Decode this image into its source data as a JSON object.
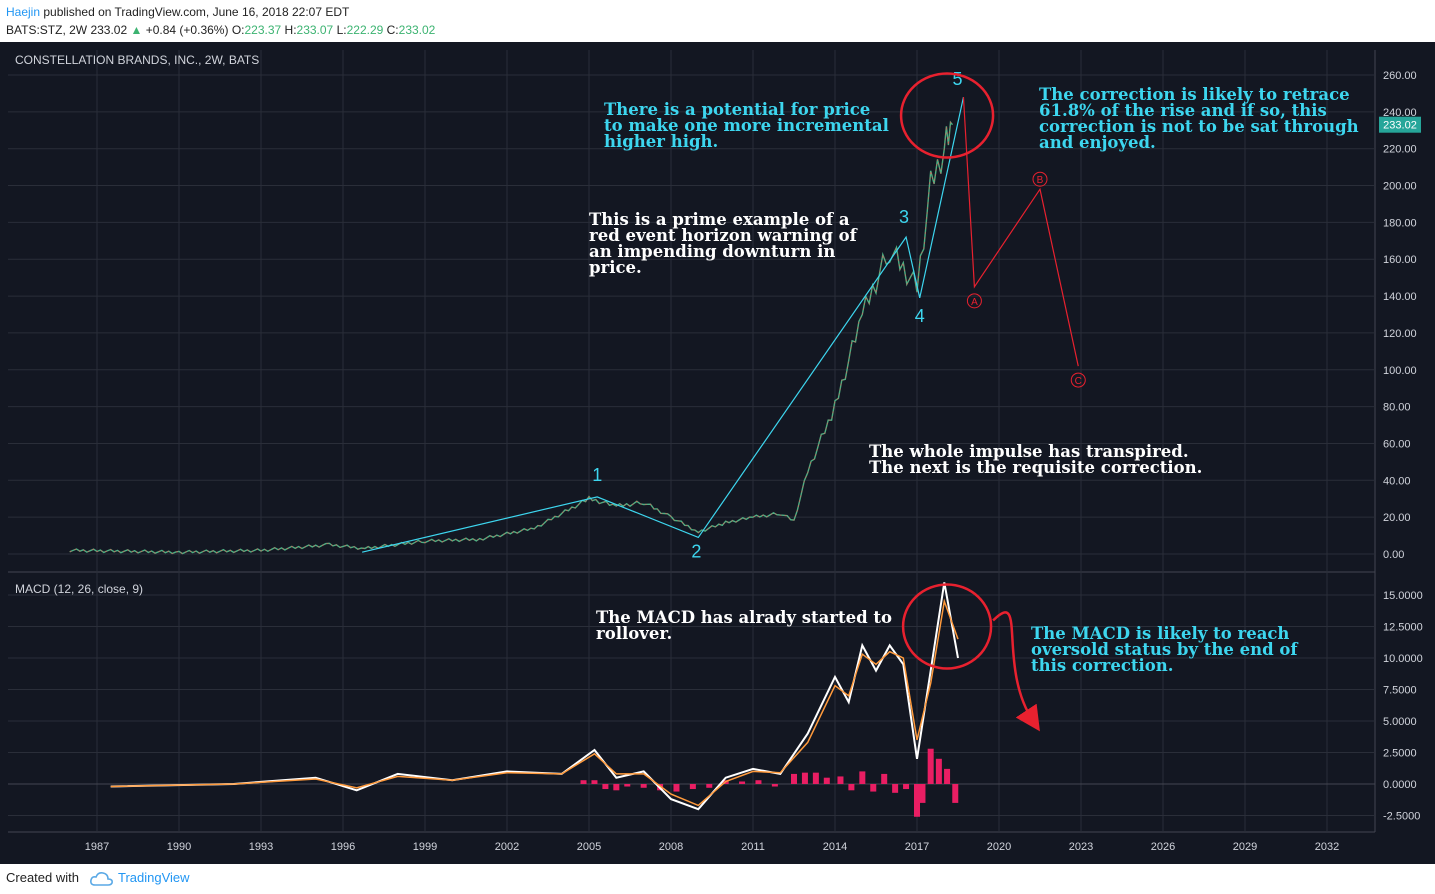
{
  "header": {
    "author": "Haejin",
    "published": " published on TradingView.com, June 16, 2018 22:07 EDT",
    "symbol_line": "BATS:STZ, 2W  233.02",
    "change": "+0.84 (+0.36%)",
    "o_label": "O:",
    "o_value": "223.37",
    "h_label": "H:",
    "h_value": "233.07",
    "l_label": "L:",
    "l_value": "222.29",
    "c_label": "C:",
    "c_value": "233.02"
  },
  "chart_data": [
    {
      "type": "line",
      "title": "CONSTELLATION BRANDS, INC., 2W, BATS",
      "last_price": "233.02",
      "ylim": [
        -10,
        270
      ],
      "y_ticks": [
        "260.00",
        "240.00",
        "220.00",
        "200.00",
        "180.00",
        "160.00",
        "140.00",
        "120.00",
        "100.00",
        "80.00",
        "60.00",
        "40.00",
        "20.00",
        "0.00"
      ],
      "x_ticks": [
        "1987",
        "1990",
        "1993",
        "1996",
        "1999",
        "2002",
        "2005",
        "2008",
        "2011",
        "2014",
        "2017",
        "2020",
        "2023",
        "2026",
        "2029",
        "2032"
      ],
      "price_path": [
        [
          1986,
          2
        ],
        [
          1990,
          1
        ],
        [
          1993,
          2
        ],
        [
          1995.5,
          5
        ],
        [
          1996.8,
          3
        ],
        [
          1999,
          7
        ],
        [
          2001,
          8
        ],
        [
          2003,
          14
        ],
        [
          2005,
          30
        ],
        [
          2006,
          26
        ],
        [
          2007,
          28
        ],
        [
          2008,
          20
        ],
        [
          2009,
          12
        ],
        [
          2010,
          17
        ],
        [
          2011,
          20
        ],
        [
          2012,
          22
        ],
        [
          2012.5,
          18
        ],
        [
          2013,
          45
        ],
        [
          2014,
          80
        ],
        [
          2015,
          130
        ],
        [
          2016,
          165
        ],
        [
          2016.5,
          155
        ],
        [
          2017,
          145
        ],
        [
          2017.5,
          200
        ],
        [
          2018,
          220
        ],
        [
          2018.3,
          233
        ]
      ],
      "wave_points": [
        {
          "label": "1",
          "x": 2005.3,
          "y": 31
        },
        {
          "label": "2",
          "x": 2009.0,
          "y": 9
        },
        {
          "label": "3",
          "x": 2016.6,
          "y": 172
        },
        {
          "label": "4",
          "x": 2017.1,
          "y": 139
        },
        {
          "label": "5",
          "x": 2018.7,
          "y": 248
        }
      ],
      "wave_start": {
        "x": 1996.7,
        "y": 1
      },
      "correction_points": [
        {
          "label": "A",
          "x": 2019.1,
          "y": 145
        },
        {
          "label": "B",
          "x": 2021.5,
          "y": 198
        },
        {
          "label": "C",
          "x": 2022.9,
          "y": 102
        }
      ],
      "correction_start": {
        "x": 2018.7,
        "y": 248
      },
      "annotations": [
        "There is a potential for price\nto make one more incremental\nhigher high.",
        "This is a prime example of a\nred event horizon warning of\nan impending downturn in\nprice.",
        "The correction is likely to retrace\n61.8% of the rise and if so, this\ncorrection is not to be sat through\nand enjoyed.",
        "The whole impulse has transpired.\nThe next is the requisite correction."
      ]
    },
    {
      "type": "line",
      "title": "MACD (12, 26, close, 9)",
      "ylim": [
        -3.5,
        16.5
      ],
      "y_ticks": [
        "15.0000",
        "12.5000",
        "10.0000",
        "7.5000",
        "5.0000",
        "2.5000",
        "0.0000",
        "-2.5000"
      ],
      "series": [
        {
          "name": "MACD",
          "color": "#ffffff",
          "points": [
            [
              1987.5,
              -0.2
            ],
            [
              1992,
              0
            ],
            [
              1995,
              0.5
            ],
            [
              1996.5,
              -0.5
            ],
            [
              1998,
              0.8
            ],
            [
              2000,
              0.3
            ],
            [
              2002,
              1
            ],
            [
              2004,
              0.8
            ],
            [
              2005.2,
              2.7
            ],
            [
              2006,
              0.5
            ],
            [
              2007,
              1
            ],
            [
              2008,
              -1.2
            ],
            [
              2009,
              -2
            ],
            [
              2010,
              0.5
            ],
            [
              2011,
              1.2
            ],
            [
              2012,
              0.8
            ],
            [
              2013,
              4
            ],
            [
              2014,
              8.5
            ],
            [
              2014.5,
              6.5
            ],
            [
              2015,
              11
            ],
            [
              2015.5,
              9
            ],
            [
              2016,
              11
            ],
            [
              2016.5,
              9.5
            ],
            [
              2017,
              2
            ],
            [
              2017.5,
              9
            ],
            [
              2018,
              16
            ],
            [
              2018.5,
              10
            ]
          ]
        },
        {
          "name": "Signal",
          "color": "#ff9a3c",
          "points": [
            [
              1987.5,
              -0.2
            ],
            [
              1992,
              0
            ],
            [
              1995,
              0.4
            ],
            [
              1996.5,
              -0.3
            ],
            [
              1998,
              0.6
            ],
            [
              2000,
              0.3
            ],
            [
              2002,
              0.9
            ],
            [
              2004,
              0.8
            ],
            [
              2005.2,
              2.4
            ],
            [
              2006,
              0.8
            ],
            [
              2007,
              0.8
            ],
            [
              2008,
              -0.8
            ],
            [
              2009,
              -1.7
            ],
            [
              2010,
              0.2
            ],
            [
              2011,
              1
            ],
            [
              2012,
              0.9
            ],
            [
              2013,
              3.3
            ],
            [
              2014,
              7.8
            ],
            [
              2014.5,
              7
            ],
            [
              2015,
              10.3
            ],
            [
              2015.5,
              9.5
            ],
            [
              2016,
              10.5
            ],
            [
              2016.5,
              10
            ],
            [
              2017,
              3.5
            ],
            [
              2017.5,
              8
            ],
            [
              2018,
              14.5
            ],
            [
              2018.5,
              11.5
            ]
          ]
        }
      ],
      "histogram": [
        [
          2004.8,
          0.3
        ],
        [
          2005.2,
          0.3
        ],
        [
          2005.6,
          -0.4
        ],
        [
          2006,
          -0.5
        ],
        [
          2006.4,
          -0.2
        ],
        [
          2007,
          -0.3
        ],
        [
          2007.6,
          -0.5
        ],
        [
          2008.2,
          -0.6
        ],
        [
          2008.8,
          -0.4
        ],
        [
          2009.4,
          -0.3
        ],
        [
          2010,
          0.3
        ],
        [
          2010.6,
          0.2
        ],
        [
          2011.2,
          0.3
        ],
        [
          2011.8,
          -0.2
        ],
        [
          2012.5,
          0.8
        ],
        [
          2012.9,
          0.9
        ],
        [
          2013.3,
          0.9
        ],
        [
          2013.7,
          0.5
        ],
        [
          2014.2,
          0.6
        ],
        [
          2014.6,
          -0.5
        ],
        [
          2015,
          1.0
        ],
        [
          2015.4,
          -0.6
        ],
        [
          2015.8,
          0.8
        ],
        [
          2016.2,
          -0.7
        ],
        [
          2016.6,
          -0.4
        ],
        [
          2017,
          -2.6
        ],
        [
          2017.2,
          -1.5
        ],
        [
          2017.5,
          2.8
        ],
        [
          2017.8,
          2
        ],
        [
          2018.1,
          1.2
        ],
        [
          2018.4,
          -1.5
        ]
      ],
      "annotations": [
        "The MACD has alrady started to\nrollover.",
        "The MACD is likely to reach\noversold status by the end of\nthis correction."
      ]
    }
  ],
  "footer": {
    "created_with": "Created with",
    "brand": "TradingView"
  },
  "colors": {
    "cyan": "#3dd6ef",
    "red": "#e8212f",
    "bg": "#131722",
    "grid": "#2a2e39"
  }
}
